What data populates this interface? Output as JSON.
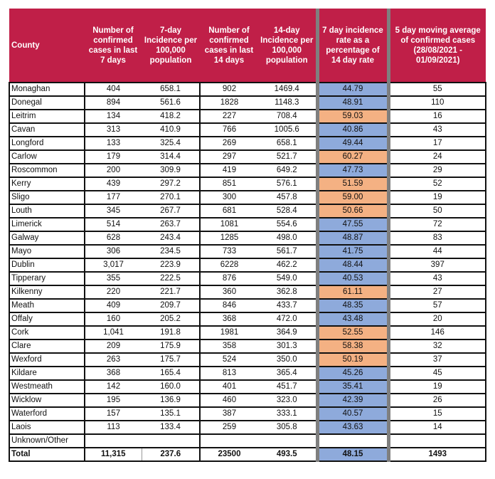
{
  "headers": {
    "county": "County",
    "c1": "Number of confirmed cases in last 7 days",
    "c2": "7-day Incidence per 100,000 population",
    "c3": "Number of confirmed cases in last 14 days",
    "c4": "14-day Incidence per 100,000 population",
    "c5": "7 day incidence rate as a percentage of 14 day rate",
    "c6": "5 day moving average of confirmed cases (28/08/2021 - 01/09/2021)"
  },
  "colors": {
    "header": "#c01f48",
    "below_50": "#8eaadb",
    "above_50": "#f4b183"
  },
  "rows": [
    [
      "Monaghan",
      "404",
      "658.1",
      "902",
      "1469.4",
      "44.79",
      "55"
    ],
    [
      "Donegal",
      "894",
      "561.6",
      "1828",
      "1148.3",
      "48.91",
      "110"
    ],
    [
      "Leitrim",
      "134",
      "418.2",
      "227",
      "708.4",
      "59.03",
      "16"
    ],
    [
      "Cavan",
      "313",
      "410.9",
      "766",
      "1005.6",
      "40.86",
      "43"
    ],
    [
      "Longford",
      "133",
      "325.4",
      "269",
      "658.1",
      "49.44",
      "17"
    ],
    [
      "Carlow",
      "179",
      "314.4",
      "297",
      "521.7",
      "60.27",
      "24"
    ],
    [
      "Roscommon",
      "200",
      "309.9",
      "419",
      "649.2",
      "47.73",
      "29"
    ],
    [
      "Kerry",
      "439",
      "297.2",
      "851",
      "576.1",
      "51.59",
      "52"
    ],
    [
      "Sligo",
      "177",
      "270.1",
      "300",
      "457.8",
      "59.00",
      "19"
    ],
    [
      "Louth",
      "345",
      "267.7",
      "681",
      "528.4",
      "50.66",
      "50"
    ],
    [
      "Limerick",
      "514",
      "263.7",
      "1081",
      "554.6",
      "47.55",
      "72"
    ],
    [
      "Galway",
      "628",
      "243.4",
      "1285",
      "498.0",
      "48.87",
      "83"
    ],
    [
      "Mayo",
      "306",
      "234.5",
      "733",
      "561.7",
      "41.75",
      "44"
    ],
    [
      "Dublin",
      "3,017",
      "223.9",
      "6228",
      "462.2",
      "48.44",
      "397"
    ],
    [
      "Tipperary",
      "355",
      "222.5",
      "876",
      "549.0",
      "40.53",
      "43"
    ],
    [
      "Kilkenny",
      "220",
      "221.7",
      "360",
      "362.8",
      "61.11",
      "27"
    ],
    [
      "Meath",
      "409",
      "209.7",
      "846",
      "433.7",
      "48.35",
      "57"
    ],
    [
      "Offaly",
      "160",
      "205.2",
      "368",
      "472.0",
      "43.48",
      "20"
    ],
    [
      "Cork",
      "1,041",
      "191.8",
      "1981",
      "364.9",
      "52.55",
      "146"
    ],
    [
      "Clare",
      "209",
      "175.9",
      "358",
      "301.3",
      "58.38",
      "32"
    ],
    [
      "Wexford",
      "263",
      "175.7",
      "524",
      "350.0",
      "50.19",
      "37"
    ],
    [
      "Kildare",
      "368",
      "165.4",
      "813",
      "365.4",
      "45.26",
      "45"
    ],
    [
      "Westmeath",
      "142",
      "160.0",
      "401",
      "451.7",
      "35.41",
      "19"
    ],
    [
      "Wicklow",
      "195",
      "136.9",
      "460",
      "323.0",
      "42.39",
      "26"
    ],
    [
      "Waterford",
      "157",
      "135.1",
      "387",
      "333.1",
      "40.57",
      "15"
    ],
    [
      "Laois",
      "113",
      "133.4",
      "259",
      "305.8",
      "43.63",
      "14"
    ],
    [
      "Unknown/Other",
      "",
      "",
      "",
      "",
      "",
      ""
    ]
  ],
  "total": [
    "Total",
    "11,315",
    "237.6",
    "23500",
    "493.5",
    "48.15",
    "1493"
  ]
}
